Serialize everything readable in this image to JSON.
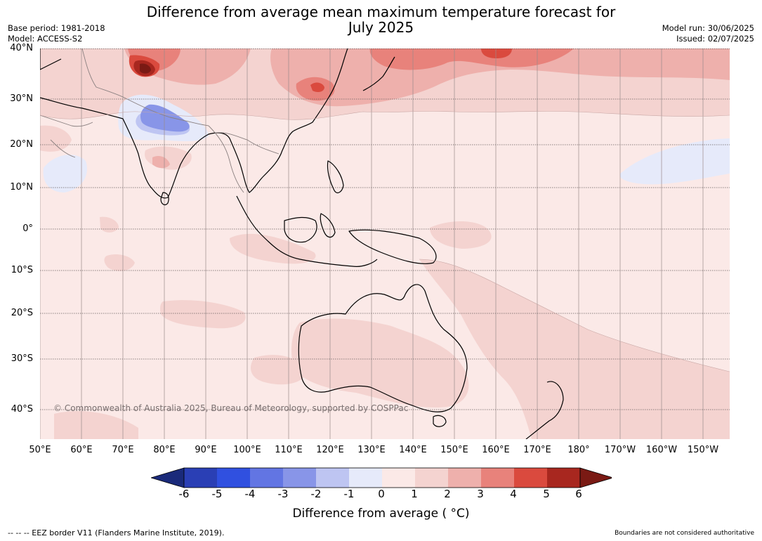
{
  "title_line1": "Difference from average mean maximum temperature forecast for",
  "title_line2": "July 2025",
  "meta": {
    "base_period": "Base period: 1981-2018",
    "model": "Model: ACCESS-S2",
    "model_run": "Model run: 30/06/2025",
    "issued": "Issued: 02/07/2025"
  },
  "map": {
    "lat_labels": [
      "40°N",
      "30°N",
      "20°N",
      "10°N",
      "0°",
      "10°S",
      "20°S",
      "30°S",
      "40°S"
    ],
    "lon_labels": [
      "50°E",
      "60°E",
      "70°E",
      "80°E",
      "90°E",
      "100°E",
      "110°E",
      "120°E",
      "130°E",
      "140°E",
      "150°E",
      "160°E",
      "170°E",
      "180°",
      "170°W",
      "160°W",
      "150°W"
    ],
    "copyright": "© Commonwealth of Australia 2025, Bureau of Meteorology, supported by COSPPac",
    "background_anomaly_color": "#fbe9e7"
  },
  "legend": {
    "ticks": [
      "-6",
      "-5",
      "-4",
      "-3",
      "-2",
      "-1",
      "0",
      "1",
      "2",
      "3",
      "4",
      "5",
      "6"
    ],
    "colors": [
      "#1a2a7a",
      "#2a3fb5",
      "#3050e0",
      "#6275e3",
      "#8895e8",
      "#bec5f2",
      "#e6eafa",
      "#fbe9e7",
      "#f4d3d0",
      "#eeb0ac",
      "#e8827b",
      "#da4a3e",
      "#a8271f",
      "#7a1a14"
    ],
    "label": "Difference from average ( °C)"
  },
  "footer": {
    "eez": "--  --  -- EEZ border V11 (Flanders Marine Institute, 2019).",
    "disclaimer": "Boundaries are not considered authoritative"
  }
}
